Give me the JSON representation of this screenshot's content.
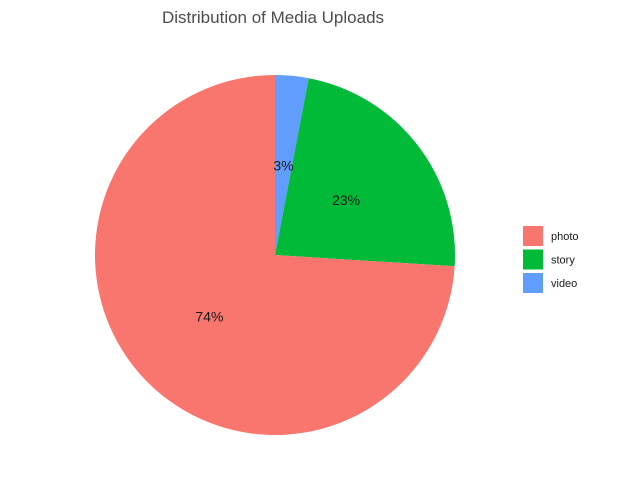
{
  "chart_data": {
    "type": "pie",
    "title": "Distribution of Media Uploads",
    "categories": [
      "photo",
      "story",
      "video"
    ],
    "values": [
      74,
      23,
      3
    ],
    "labels": [
      "74%",
      "23%",
      "3%"
    ],
    "colors": [
      "#F8766D",
      "#00BA38",
      "#619CFF"
    ],
    "legend_position": "right",
    "start": "top",
    "direction": "counterclockwise"
  }
}
